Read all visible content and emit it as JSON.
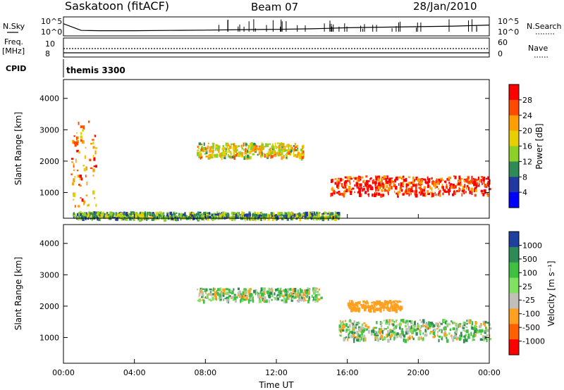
{
  "header": {
    "station": "Saskatoon (fitACF)",
    "beam": "Beam 07",
    "date": "28/Jan/2010",
    "cpid_label": "CPID",
    "cpid_value": "themis 3300"
  },
  "chart_data": [
    {
      "type": "line",
      "panel": "noise",
      "left_label": "N.Sky",
      "right_label": "N.Search",
      "left_ticks": [
        "10^5",
        "10^0"
      ],
      "right_ticks": [
        "10^5",
        "10^0"
      ],
      "x": [
        0,
        1,
        2,
        4,
        6,
        8,
        10,
        12,
        14,
        15,
        16,
        18,
        20,
        22,
        24
      ],
      "series": [
        {
          "name": "N.Sky",
          "values": [
            3.5,
            1.0,
            0.9,
            0.9,
            1.0,
            1.1,
            1.3,
            1.4,
            1.6,
            1.8,
            2.0,
            2.2,
            2.4,
            2.6,
            3.0
          ]
        }
      ]
    },
    {
      "type": "line",
      "panel": "frequency",
      "left_label": "Freq.",
      "left_unit": "[MHz]",
      "right_label": "Nave",
      "left_ticks": [
        "10",
        "8"
      ],
      "right_ticks": [
        "60",
        "0"
      ]
    },
    {
      "type": "heatmap",
      "panel": "power",
      "ylabel": "Slant Range [km]",
      "yticks": [
        "4000",
        "3000",
        "2000",
        "1000"
      ],
      "ylim": [
        180,
        4600
      ],
      "colorbar_label": "Power [dB]",
      "colorbar_ticks": [
        "28",
        "24",
        "20",
        "16",
        "12",
        "8",
        "4"
      ],
      "colorbar_colors": [
        "#ff0000",
        "#ff4a00",
        "#ff9e00",
        "#e8d000",
        "#8cd028",
        "#2e8b57",
        "#2038a0",
        "#0000ff"
      ],
      "regions": [
        {
          "t0": 0.4,
          "t1": 1.8,
          "r0": 600,
          "r1": 3400,
          "value": 20
        },
        {
          "t0": 7.5,
          "t1": 13.5,
          "r0": 2150,
          "r1": 2600,
          "value": 14
        },
        {
          "t0": 15.0,
          "t1": 24.0,
          "r0": 950,
          "r1": 1550,
          "value": 24
        },
        {
          "t0": 0.5,
          "t1": 15.5,
          "r0": 200,
          "r1": 400,
          "value": 8
        }
      ]
    },
    {
      "type": "heatmap",
      "panel": "velocity",
      "ylabel": "Slant Range [km]",
      "yticks": [
        "4000",
        "3000",
        "2000",
        "1000"
      ],
      "ylim": [
        180,
        4600
      ],
      "colorbar_label": "Velocity [m s⁻¹]",
      "colorbar_ticks": [
        "1000",
        "500",
        "100",
        "25",
        "-25",
        "-100",
        "-500",
        "-1000"
      ],
      "colorbar_colors": [
        "#2040a0",
        "#2e8b57",
        "#40c040",
        "#80e060",
        "#c0c0b8",
        "#ffa020",
        "#ff6000",
        "#ff0000"
      ],
      "xticks": [
        "00:00",
        "04:00",
        "08:00",
        "12:00",
        "16:00",
        "20:00",
        "00:00"
      ],
      "xlabel": "Time UT",
      "regions": [
        {
          "t0": 7.5,
          "t1": 14.5,
          "r0": 2200,
          "r1": 2600,
          "value": 0
        },
        {
          "t0": 15.5,
          "t1": 24.0,
          "r0": 950,
          "r1": 1600,
          "value": 0
        },
        {
          "t0": 16.0,
          "t1": 19.0,
          "r0": 1900,
          "r1": 2200,
          "value": -300
        }
      ]
    }
  ]
}
